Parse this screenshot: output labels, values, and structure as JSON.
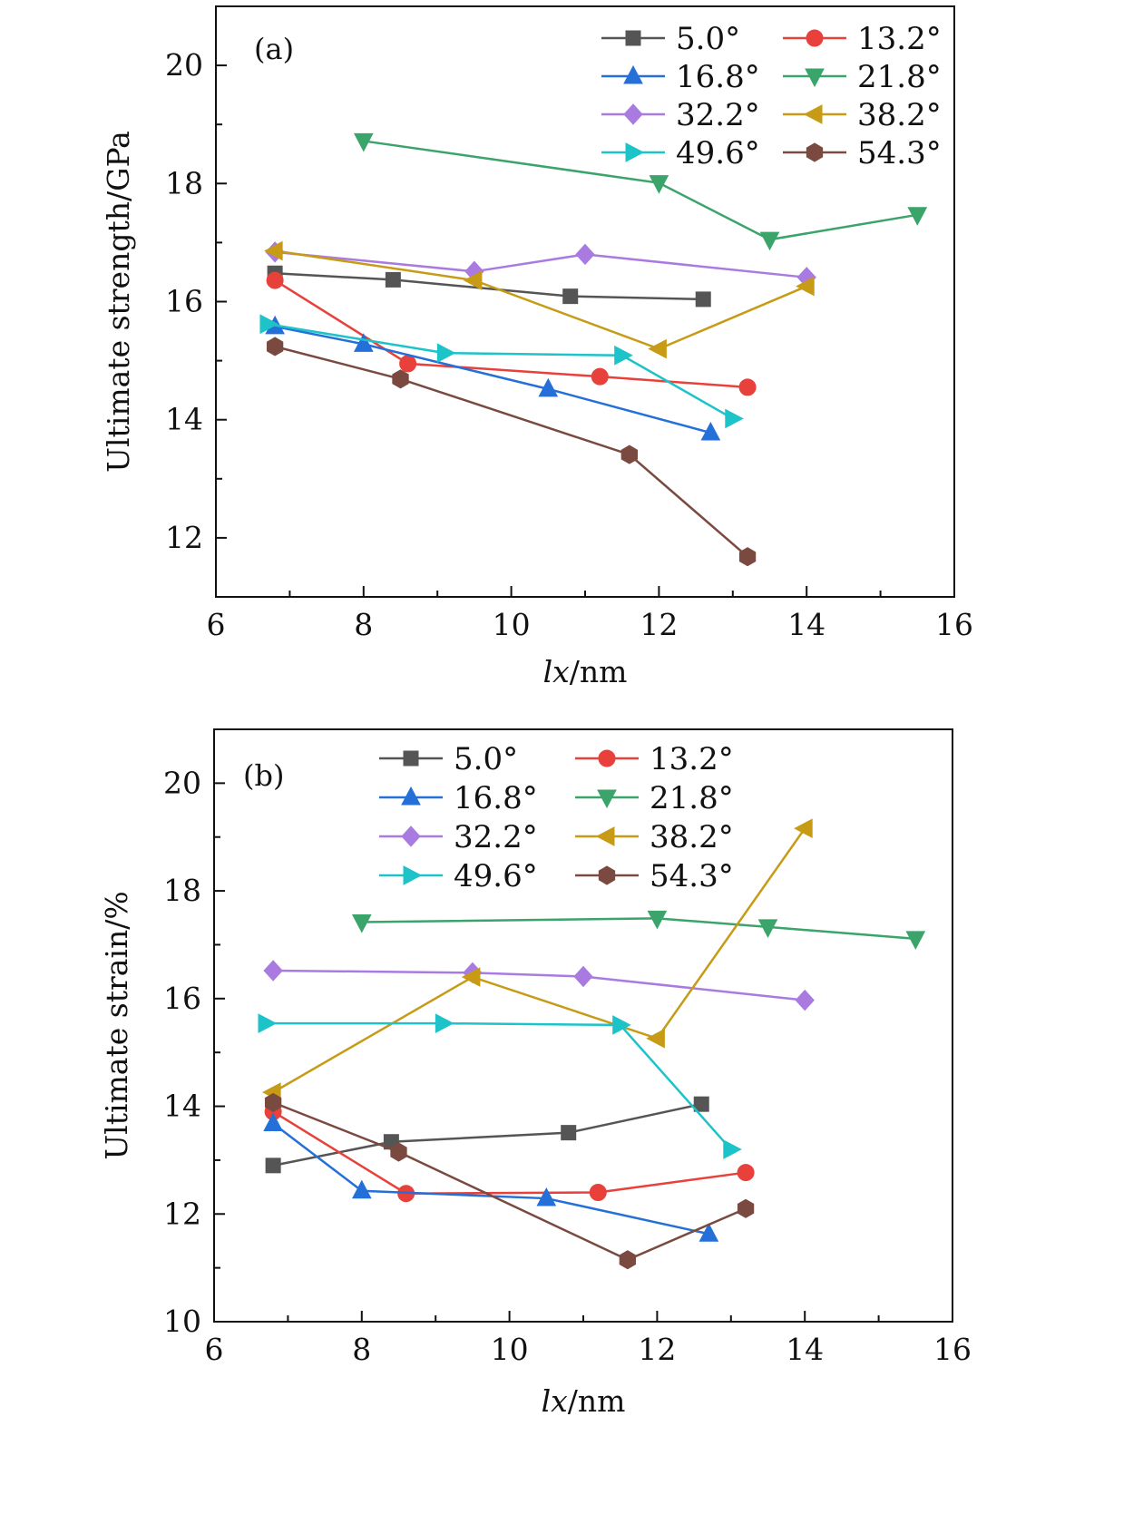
{
  "chart_data": [
    {
      "type": "line",
      "panel_label": "(a)",
      "xlabel": "lx/nm",
      "xlabel_parts": {
        "italic": "lx",
        "rest": "/nm"
      },
      "ylabel": "Ultimate strength/GPa",
      "xlim": [
        6,
        16
      ],
      "ylim": [
        11,
        21
      ],
      "x_ticks": [
        6,
        8,
        10,
        12,
        14,
        16
      ],
      "y_ticks": [
        12,
        14,
        16,
        18,
        20
      ],
      "legend_position": "top-right",
      "series": [
        {
          "name": "5.0°",
          "color": "#555555",
          "marker": "square",
          "x": [
            6.8,
            8.4,
            10.8,
            12.6
          ],
          "y": [
            16.48,
            16.37,
            16.09,
            16.04
          ]
        },
        {
          "name": "13.2°",
          "color": "#e8403a",
          "marker": "circle",
          "x": [
            6.8,
            8.6,
            11.2,
            13.2
          ],
          "y": [
            16.36,
            14.95,
            14.73,
            14.55
          ]
        },
        {
          "name": "16.8°",
          "color": "#2470d8",
          "marker": "triangle-up",
          "x": [
            6.8,
            8.0,
            10.5,
            12.7
          ],
          "y": [
            15.58,
            15.28,
            14.52,
            13.78
          ]
        },
        {
          "name": "21.8°",
          "color": "#3aa46a",
          "marker": "triangle-down",
          "x": [
            8.0,
            12.0,
            13.5,
            15.5
          ],
          "y": [
            18.72,
            18.01,
            17.05,
            17.47
          ]
        },
        {
          "name": "32.2°",
          "color": "#a97be0",
          "marker": "diamond",
          "x": [
            6.8,
            9.5,
            11.0,
            14.0
          ],
          "y": [
            16.84,
            16.51,
            16.8,
            16.41
          ]
        },
        {
          "name": "38.2°",
          "color": "#c79b16",
          "marker": "triangle-left",
          "x": [
            6.8,
            9.5,
            12.0,
            14.0
          ],
          "y": [
            16.86,
            16.36,
            15.2,
            16.26
          ]
        },
        {
          "name": "49.6°",
          "color": "#1cc3c8",
          "marker": "triangle-right",
          "x": [
            6.7,
            9.1,
            11.5,
            13.0
          ],
          "y": [
            15.62,
            15.13,
            15.09,
            14.02
          ]
        },
        {
          "name": "54.3°",
          "color": "#7a4a40",
          "marker": "hexagon",
          "x": [
            6.8,
            8.5,
            11.6,
            13.2
          ],
          "y": [
            15.24,
            14.69,
            13.41,
            11.68
          ]
        }
      ]
    },
    {
      "type": "line",
      "panel_label": "(b)",
      "xlabel": "lx/nm",
      "xlabel_parts": {
        "italic": "lx",
        "rest": "/nm"
      },
      "ylabel": "Ultimate strain/%",
      "xlim": [
        6,
        16
      ],
      "ylim": [
        10,
        21
      ],
      "x_ticks": [
        6,
        8,
        10,
        12,
        14,
        16
      ],
      "y_ticks": [
        10,
        12,
        14,
        16,
        18,
        20
      ],
      "legend_position": "top-center",
      "series": [
        {
          "name": "5.0°",
          "color": "#555555",
          "marker": "square",
          "x": [
            6.8,
            8.4,
            10.8,
            12.6
          ],
          "y": [
            12.9,
            13.34,
            13.51,
            14.04
          ]
        },
        {
          "name": "13.2°",
          "color": "#e8403a",
          "marker": "circle",
          "x": [
            6.8,
            8.6,
            11.2,
            13.2
          ],
          "y": [
            13.9,
            12.38,
            12.4,
            12.77
          ]
        },
        {
          "name": "16.8°",
          "color": "#2470d8",
          "marker": "triangle-up",
          "x": [
            6.8,
            8.0,
            10.5,
            12.7
          ],
          "y": [
            13.68,
            12.43,
            12.29,
            11.63
          ]
        },
        {
          "name": "21.8°",
          "color": "#3aa46a",
          "marker": "triangle-down",
          "x": [
            8.0,
            12.0,
            13.5,
            15.5
          ],
          "y": [
            17.42,
            17.49,
            17.33,
            17.11
          ]
        },
        {
          "name": "32.2°",
          "color": "#a97be0",
          "marker": "diamond",
          "x": [
            6.8,
            9.5,
            11.0,
            14.0
          ],
          "y": [
            16.52,
            16.48,
            16.41,
            15.97
          ]
        },
        {
          "name": "38.2°",
          "color": "#c79b16",
          "marker": "triangle-left",
          "x": [
            6.8,
            9.5,
            12.0,
            14.0
          ],
          "y": [
            14.26,
            16.4,
            15.26,
            19.16
          ]
        },
        {
          "name": "49.6°",
          "color": "#1cc3c8",
          "marker": "triangle-right",
          "x": [
            6.7,
            9.1,
            11.5,
            13.0
          ],
          "y": [
            15.54,
            15.54,
            15.51,
            13.2
          ]
        },
        {
          "name": "54.3°",
          "color": "#7a4a40",
          "marker": "hexagon",
          "x": [
            6.8,
            8.5,
            11.6,
            13.2
          ],
          "y": [
            14.07,
            13.15,
            11.15,
            12.1
          ]
        }
      ]
    }
  ]
}
